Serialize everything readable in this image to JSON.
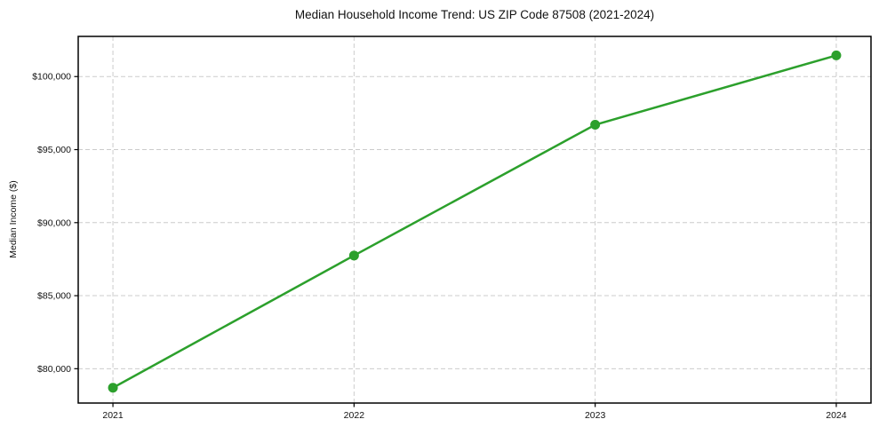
{
  "figure": {
    "background": "#ffffff"
  },
  "chart_data": {
    "type": "line",
    "title": "Median Household Income Trend: US ZIP Code 87508 (2021-2024)",
    "xlabel": "",
    "ylabel": "Median Income ($)",
    "categories": [
      "2021",
      "2022",
      "2023",
      "2024"
    ],
    "x": [
      2021,
      2022,
      2023,
      2024
    ],
    "series": [
      {
        "name": "Median Household Income",
        "values": [
          78700,
          87750,
          96700,
          101450
        ],
        "color": "#2ca02c",
        "marker": "circle",
        "line_width": 2.5,
        "marker_radius": 5.5
      }
    ],
    "y_ticks": [
      80000,
      85000,
      90000,
      95000,
      100000
    ],
    "y_tick_labels": [
      "$80,000",
      "$85,000",
      "$90,000",
      "$95,000",
      "$100,000"
    ],
    "ylim": [
      77650,
      102750
    ],
    "xlim": [
      2020.856,
      2024.144
    ],
    "grid": {
      "show": true,
      "color": "#cccccc",
      "style": "dashed"
    },
    "legend": "none",
    "axis_color": "#000000",
    "plot_background": "#ffffff"
  }
}
